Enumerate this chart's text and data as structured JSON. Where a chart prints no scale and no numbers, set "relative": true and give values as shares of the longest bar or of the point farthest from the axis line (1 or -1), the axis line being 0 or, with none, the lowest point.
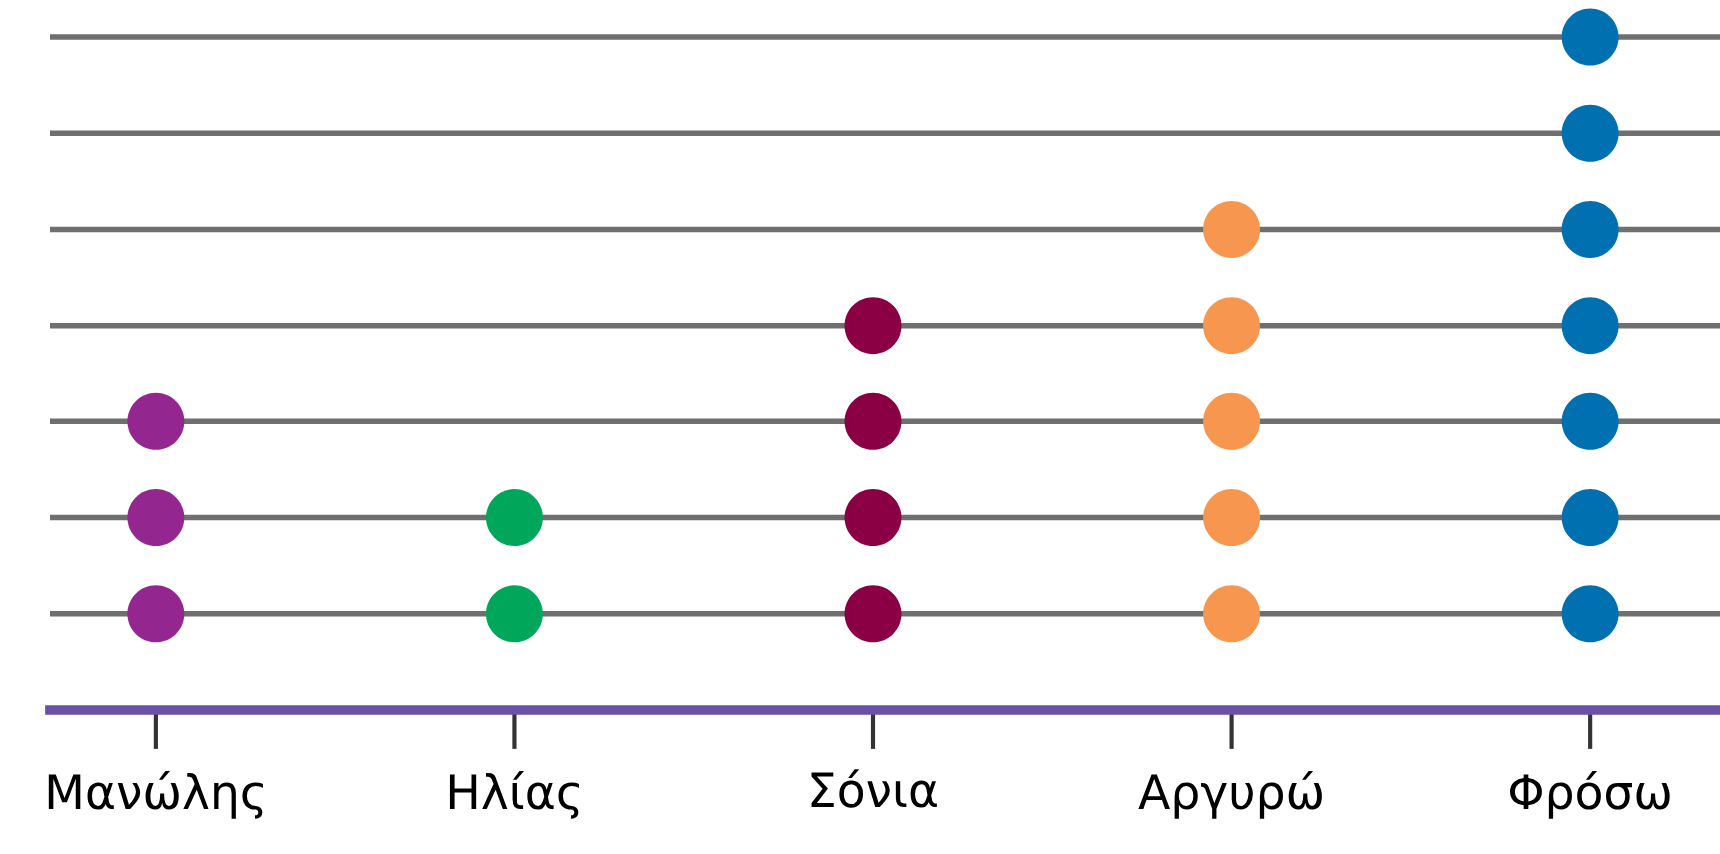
{
  "chart_data": {
    "type": "scatter",
    "relative": true,
    "grid": "y",
    "marker": "circle",
    "legend": false,
    "categories": [
      "Μανώλης",
      "Ηλίας",
      "Σόνια",
      "Αργυρώ",
      "Φρόσω"
    ],
    "series": [
      {
        "color": "#93278f",
        "x": [
          "Μανώλης",
          "Μανώλης",
          "Μανώλης"
        ],
        "values": [
          0.143,
          0.286,
          0.429
        ]
      },
      {
        "color": "#00a65a",
        "x": [
          "Ηλίας",
          "Ηλίας"
        ],
        "values": [
          0.143,
          0.286
        ]
      },
      {
        "color": "#8b0044",
        "x": [
          "Σόνια",
          "Σόνια",
          "Σόνια",
          "Σόνια"
        ],
        "values": [
          0.143,
          0.286,
          0.429,
          0.571
        ]
      },
      {
        "color": "#f7964f",
        "x": [
          "Αργυρώ",
          "Αργυρώ",
          "Αργυρώ",
          "Αργυρώ",
          "Αργυρώ"
        ],
        "values": [
          0.143,
          0.286,
          0.429,
          0.571,
          0.714
        ]
      },
      {
        "color": "#0070b0",
        "x": [
          "Φρόσω",
          "Φρόσω",
          "Φρόσω",
          "Φρόσω",
          "Φρόσω",
          "Φρόσω",
          "Φρόσω"
        ],
        "values": [
          0.143,
          0.286,
          0.429,
          0.571,
          0.714,
          0.857,
          1
        ]
      }
    ]
  }
}
